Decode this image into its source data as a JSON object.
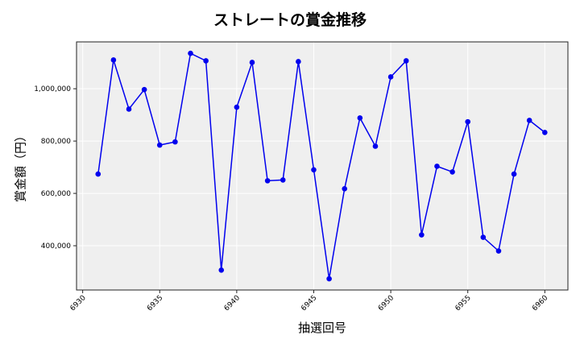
{
  "chart_data": {
    "type": "line",
    "title": "ストレートの賞金推移",
    "xlabel": "抽選回号",
    "ylabel": "賞金額（円）",
    "x": [
      6931,
      6932,
      6933,
      6934,
      6935,
      6936,
      6937,
      6938,
      6939,
      6940,
      6941,
      6942,
      6943,
      6944,
      6945,
      6946,
      6947,
      6948,
      6949,
      6950,
      6951,
      6952,
      6953,
      6954,
      6955,
      6956,
      6957,
      6958,
      6959,
      6960
    ],
    "series": [
      {
        "name": "ストレート",
        "color": "#0000ee",
        "values": [
          673800,
          1109800,
          922100,
          996900,
          784600,
          796900,
          1135400,
          1106700,
          306900,
          929500,
          1100600,
          648300,
          651300,
          1103700,
          690200,
          273800,
          617700,
          888300,
          780300,
          1045200,
          1106700,
          441500,
          703700,
          682100,
          873800,
          432300,
          380000,
          673800,
          879000,
          832900
        ]
      }
    ],
    "xticks": [
      6930,
      6935,
      6940,
      6945,
      6950,
      6955,
      6960
    ],
    "yticks": [
      400000,
      600000,
      800000,
      1000000
    ],
    "ytick_labels": [
      "400,000",
      "600,000",
      "800,000",
      "1,000,000"
    ],
    "xlim": [
      6929.6,
      6961.5
    ],
    "ylim": [
      230800,
      1179000
    ],
    "grid": true,
    "legend": null
  },
  "colors": {
    "plot_bg": "#efefef",
    "grid": "#ffffff",
    "line": "#0000ee",
    "marker": "#0000ee"
  }
}
